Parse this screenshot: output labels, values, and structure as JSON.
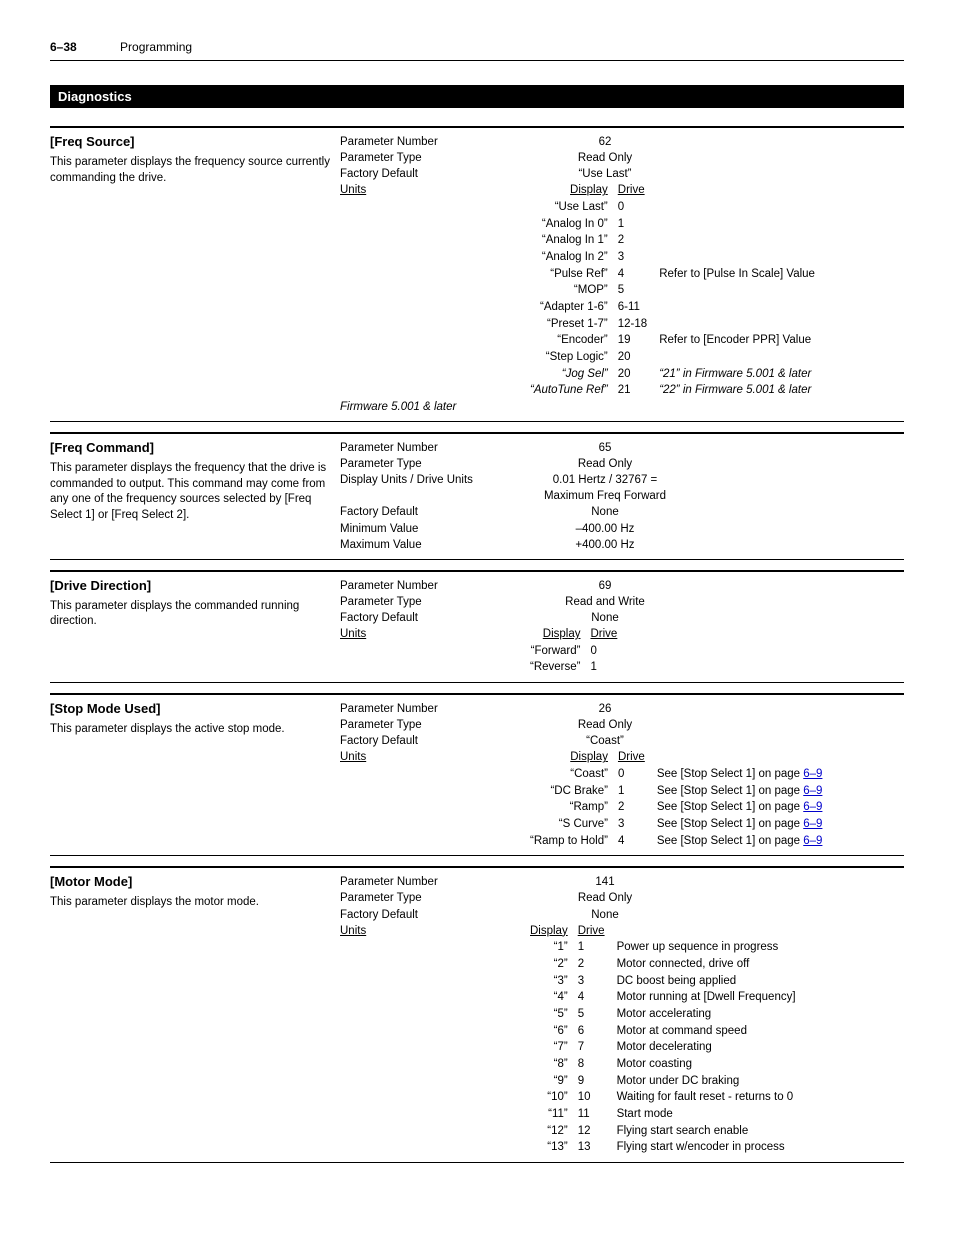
{
  "header": {
    "page_num": "6–38",
    "title": "Programming"
  },
  "section": "Diagnostics",
  "labels": {
    "param_number": "Parameter Number",
    "param_type": "Parameter Type",
    "factory_default": "Factory Default",
    "units": "Units",
    "display_units_drive": "Display Units / Drive Units",
    "minimum_value": "Minimum Value",
    "maximum_value": "Maximum Value",
    "display": "Display",
    "drive": "Drive"
  },
  "params": [
    {
      "title": "[Freq Source]",
      "desc": "This parameter displays the frequency source currently commanding the drive.",
      "number": "62",
      "type": "Read Only",
      "default": "“Use Last”",
      "firmware_note": "Firmware 5.001 & later",
      "units": [
        {
          "display": "“Use Last”",
          "drive": "0",
          "note": ""
        },
        {
          "display": "“Analog In 0”",
          "drive": "1",
          "note": ""
        },
        {
          "display": "“Analog In 1”",
          "drive": "2",
          "note": ""
        },
        {
          "display": "“Analog In 2”",
          "drive": "3",
          "note": ""
        },
        {
          "display": "“Pulse Ref”",
          "drive": "4",
          "note": "Refer to [Pulse In Scale] Value"
        },
        {
          "display": "“MOP”",
          "drive": "5",
          "note": ""
        },
        {
          "display": "“Adapter 1-6”",
          "drive": "6-11",
          "note": ""
        },
        {
          "display": "“Preset 1-7”",
          "drive": "12-18",
          "note": ""
        },
        {
          "display": "“Encoder”",
          "drive": "19",
          "note": "Refer to [Encoder PPR] Value"
        },
        {
          "display": "“Step Logic”",
          "drive": "20",
          "note": ""
        },
        {
          "display": "“Jog Sel”",
          "drive": "20",
          "note": "“21” in Firmware 5.001 & later",
          "italic": true
        },
        {
          "display": "“AutoTune Ref”",
          "drive": "21",
          "note": "“22” in Firmware 5.001 & later",
          "italic": true
        }
      ]
    },
    {
      "title": "[Freq Command]",
      "desc": "This parameter displays the frequency that the drive is commanded to output. This command may come from any one of the frequency sources selected by [Freq Select 1] or [Freq Select 2].",
      "number": "65",
      "type": "Read Only",
      "display_units": "0.01 Hertz / 32767 = Maximum Freq Forward",
      "default": "None",
      "min": "–400.00 Hz",
      "max": "+400.00 Hz"
    },
    {
      "title": "[Drive Direction]",
      "desc": "This parameter displays the commanded running direction.",
      "number": "69",
      "type": "Read and Write",
      "default": "None",
      "units": [
        {
          "display": "“Forward”",
          "drive": "0",
          "note": ""
        },
        {
          "display": "“Reverse”",
          "drive": "1",
          "note": ""
        }
      ]
    },
    {
      "title": "[Stop Mode Used]",
      "desc": "This parameter displays the active stop mode.",
      "number": "26",
      "type": "Read Only",
      "default": "“Coast”",
      "units": [
        {
          "display": "“Coast”",
          "drive": "0",
          "note": "See [Stop Select 1] on page ",
          "link": "6–9"
        },
        {
          "display": "“DC Brake”",
          "drive": "1",
          "note": "See [Stop Select 1] on page ",
          "link": "6–9"
        },
        {
          "display": "“Ramp”",
          "drive": "2",
          "note": "See [Stop Select 1] on page ",
          "link": "6–9"
        },
        {
          "display": "“S Curve”",
          "drive": "3",
          "note": "See [Stop Select 1] on page ",
          "link": "6–9"
        },
        {
          "display": "“Ramp to Hold”",
          "drive": "4",
          "note": "See [Stop Select 1] on page ",
          "link": "6–9"
        }
      ]
    },
    {
      "title": "[Motor Mode]",
      "desc": "This parameter displays the motor mode.",
      "number": "141",
      "type": "Read Only",
      "default": "None",
      "units": [
        {
          "display": "“1”",
          "drive": "1",
          "note": "Power up sequence in progress"
        },
        {
          "display": "“2”",
          "drive": "2",
          "note": "Motor connected, drive off"
        },
        {
          "display": "“3”",
          "drive": "3",
          "note": "DC boost being applied"
        },
        {
          "display": "“4”",
          "drive": "4",
          "note": "Motor running at [Dwell Frequency]"
        },
        {
          "display": "“5”",
          "drive": "5",
          "note": "Motor accelerating"
        },
        {
          "display": "“6”",
          "drive": "6",
          "note": "Motor at command speed"
        },
        {
          "display": "“7”",
          "drive": "7",
          "note": "Motor decelerating"
        },
        {
          "display": "“8”",
          "drive": "8",
          "note": "Motor coasting"
        },
        {
          "display": "“9”",
          "drive": "9",
          "note": "Motor under DC braking"
        },
        {
          "display": "“10”",
          "drive": "10",
          "note": "Waiting for fault reset - returns to 0"
        },
        {
          "display": "“11”",
          "drive": "11",
          "note": "Start mode"
        },
        {
          "display": "“12”",
          "drive": "12",
          "note": "Flying start search enable"
        },
        {
          "display": "“13”",
          "drive": "13",
          "note": "Flying start w/encoder in process"
        }
      ]
    }
  ]
}
